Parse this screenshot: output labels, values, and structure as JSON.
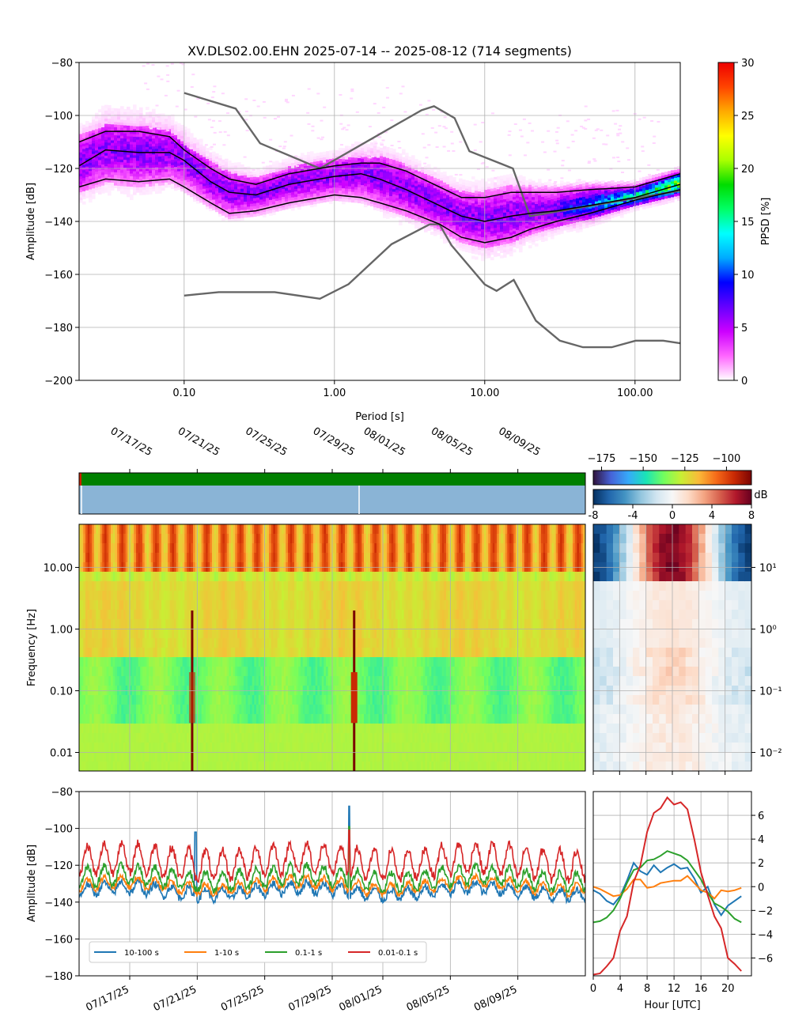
{
  "chart_data": [
    {
      "type": "heatmap",
      "panel": "ppsd",
      "title": "XV.DLS02.00.EHN   2025-07-14 -- 2025-08-12  (714 segments)",
      "xlabel": "Period [s]",
      "ylabel": "Amplitude [dB]",
      "xscale": "log",
      "xlim": [
        0.02,
        200
      ],
      "ylim": [
        -200,
        -80
      ],
      "xticks": [
        {
          "v": 0.1,
          "label": "0.10"
        },
        {
          "v": 1,
          "label": "1.00"
        },
        {
          "v": 10,
          "label": "10.00"
        },
        {
          "v": 100,
          "label": "100.00"
        }
      ],
      "yticks": [
        {
          "v": -80,
          "label": "−80"
        },
        {
          "v": -100,
          "label": "−100"
        },
        {
          "v": -120,
          "label": "−120"
        },
        {
          "v": -140,
          "label": "−140"
        },
        {
          "v": -160,
          "label": "−160"
        },
        {
          "v": -180,
          "label": "−180"
        },
        {
          "v": -200,
          "label": "−200"
        }
      ],
      "grid": true,
      "colorbar": {
        "label": "PPSD [%]",
        "range": [
          0,
          30
        ],
        "ticks": [
          {
            "v": 0,
            "label": "0"
          },
          {
            "v": 5,
            "label": "5"
          },
          {
            "v": 10,
            "label": "10"
          },
          {
            "v": 15,
            "label": "15"
          },
          {
            "v": 20,
            "label": "20"
          },
          {
            "v": 25,
            "label": "25"
          },
          {
            "v": 30,
            "label": "30"
          }
        ],
        "colors": [
          "#ffffff",
          "#ff66ff",
          "#cc00ff",
          "#6600ff",
          "#0000ff",
          "#00aaff",
          "#00ffff",
          "#00ff66",
          "#00dd00",
          "#aaff00",
          "#ffff00",
          "#ffaa00",
          "#ff4400",
          "#ee0000"
        ]
      },
      "percentile_curves": [
        {
          "x": [
            0.02,
            0.03,
            0.05,
            0.08,
            0.1,
            0.15,
            0.2,
            0.3,
            0.5,
            1,
            1.5,
            2,
            3,
            5,
            7,
            10,
            15,
            20,
            30,
            50,
            100,
            200
          ],
          "y": [
            -110,
            -106,
            -106,
            -108,
            -113,
            -120,
            -124,
            -126,
            -122,
            -119,
            -118,
            -118,
            -121,
            -127,
            -131,
            -131,
            -129,
            -129,
            -129,
            -128,
            -127,
            -122
          ]
        },
        {
          "x": [
            0.02,
            0.03,
            0.05,
            0.08,
            0.1,
            0.15,
            0.2,
            0.3,
            0.5,
            1,
            1.5,
            2,
            3,
            5,
            7,
            10,
            15,
            20,
            30,
            50,
            100,
            200
          ],
          "y": [
            -119,
            -113,
            -114,
            -114,
            -117,
            -125,
            -129,
            -130,
            -126,
            -123,
            -122,
            -124,
            -128,
            -134,
            -138,
            -140,
            -138,
            -137,
            -136,
            -134,
            -131,
            -126
          ]
        },
        {
          "x": [
            0.02,
            0.03,
            0.05,
            0.08,
            0.1,
            0.15,
            0.2,
            0.3,
            0.5,
            1,
            1.5,
            2,
            3,
            5,
            7,
            10,
            15,
            20,
            30,
            50,
            100,
            200
          ],
          "y": [
            -127,
            -124,
            -125,
            -124,
            -127,
            -133,
            -137,
            -136,
            -133,
            -130,
            -131,
            -133,
            -136,
            -141,
            -146,
            -148,
            -146,
            -143,
            -140,
            -137,
            -132,
            -128
          ]
        }
      ],
      "noise_model_high": {
        "x": [
          0.1,
          0.22,
          0.32,
          0.8,
          3.8,
          4.6,
          6.3,
          7.9,
          15.4,
          20,
          354.8
        ],
        "y": [
          -91.5,
          -97.4,
          -110.5,
          -120,
          -98,
          -96.5,
          -101,
          -113.5,
          -120,
          -138,
          -126
        ]
      },
      "noise_model_low": {
        "x": [
          0.1,
          0.17,
          0.4,
          0.8,
          1.24,
          2.4,
          4.3,
          5,
          6,
          10,
          12,
          15.6,
          21.9,
          31.6,
          45,
          70,
          101,
          154,
          200
        ],
        "y": [
          -168,
          -166.7,
          -166.7,
          -169.2,
          -163.7,
          -148.6,
          -141.1,
          -141.1,
          -149,
          -163.8,
          -166.2,
          -162.1,
          -177.5,
          -185,
          -187.5,
          -187.5,
          -185,
          -185,
          -186
        ]
      }
    },
    {
      "type": "heatmap",
      "panel": "spectrogram",
      "ylabel": "Frequency [Hz]",
      "yscale": "log",
      "ylim": [
        0.005,
        50
      ],
      "yticks": [
        {
          "v": 0.01,
          "label": "0.01"
        },
        {
          "v": 0.1,
          "label": "0.10"
        },
        {
          "v": 1,
          "label": "1.00"
        },
        {
          "v": 10,
          "label": "10.00"
        }
      ],
      "xlim": [
        "2025-07-14",
        "2025-08-13"
      ],
      "date_ticks": [
        {
          "d": "2025-07-17",
          "label": "07/17/25"
        },
        {
          "d": "2025-07-21",
          "label": "07/21/25"
        },
        {
          "d": "2025-07-25",
          "label": "07/25/25"
        },
        {
          "d": "2025-07-29",
          "label": "07/29/25"
        },
        {
          "d": "2025-08-01",
          "label": "08/01/25"
        },
        {
          "d": "2025-08-05",
          "label": "08/05/25"
        },
        {
          "d": "2025-08-09",
          "label": "08/09/25"
        }
      ],
      "colorbar": {
        "range": [
          -180,
          -85
        ],
        "ticks": [
          {
            "v": -175,
            "label": "−175"
          },
          {
            "v": -150,
            "label": "−150"
          },
          {
            "v": -125,
            "label": "−125"
          },
          {
            "v": -100,
            "label": "−100"
          }
        ]
      },
      "events": [
        "2025-07-20",
        "2025-07-20",
        "2025-07-30",
        "2025-07-30"
      ]
    },
    {
      "type": "heatmap",
      "panel": "diurnal-anomaly",
      "unit": "dB",
      "xlim": [
        0,
        24
      ],
      "yscale": "log",
      "ylim": [
        0.005,
        50
      ],
      "yticks": [
        {
          "v": 0.01,
          "label": "10⁻²"
        },
        {
          "v": 0.1,
          "label": "10⁻¹"
        },
        {
          "v": 1,
          "label": "10⁰"
        },
        {
          "v": 10,
          "label": "10¹"
        }
      ],
      "colorbar": {
        "range": [
          -8,
          8
        ],
        "ticks": [
          {
            "v": -8,
            "label": "-8"
          },
          {
            "v": -4,
            "label": "-4"
          },
          {
            "v": 0,
            "label": "0"
          },
          {
            "v": 4,
            "label": "4"
          },
          {
            "v": 8,
            "label": "8"
          }
        ]
      }
    },
    {
      "type": "line",
      "panel": "band-timeseries",
      "ylabel": "Amplitude [dB]",
      "ylim": [
        -180,
        -80
      ],
      "yticks": [
        {
          "v": -80,
          "label": "−80"
        },
        {
          "v": -100,
          "label": "−100"
        },
        {
          "v": -120,
          "label": "−120"
        },
        {
          "v": -140,
          "label": "−140"
        },
        {
          "v": -160,
          "label": "−160"
        },
        {
          "v": -180,
          "label": "−180"
        }
      ],
      "grid": true,
      "legend": "lower-left",
      "series": [
        {
          "name": "10-100 s",
          "color": "#1f77b4",
          "mean": -134,
          "amp": 3,
          "noise": 2,
          "spike_day": 16,
          "spike": -88
        },
        {
          "name": "1-10 s",
          "color": "#ff7f0e",
          "mean": -131,
          "amp": 3,
          "noise": 1.5,
          "spike_day": 16,
          "spike": -100
        },
        {
          "name": "0.1-1 s",
          "color": "#2ca02c",
          "mean": -127,
          "amp": 5,
          "noise": 2,
          "spike_day": 16,
          "spike": -99
        },
        {
          "name": "0.01-0.1 s",
          "color": "#d62728",
          "mean": -118,
          "amp": 8,
          "noise": 2.5,
          "spike_day": 16,
          "spike": -101
        }
      ]
    },
    {
      "type": "line",
      "panel": "diurnal-profile",
      "xlabel": "Hour [UTC]",
      "xlim": [
        0,
        23.5
      ],
      "ylim": [
        -7.5,
        8
      ],
      "xticks": [
        0,
        4,
        8,
        12,
        16,
        20
      ],
      "yticks": [
        {
          "v": -6,
          "label": "−6"
        },
        {
          "v": -4,
          "label": "−4"
        },
        {
          "v": -2,
          "label": "−2"
        },
        {
          "v": 0,
          "label": "0"
        },
        {
          "v": 2,
          "label": "2"
        },
        {
          "v": 4,
          "label": "4"
        },
        {
          "v": 6,
          "label": "6"
        }
      ],
      "grid": true,
      "x": [
        0,
        1,
        2,
        3,
        4,
        5,
        6,
        7,
        8,
        9,
        10,
        11,
        12,
        13,
        14,
        15,
        16,
        17,
        18,
        19,
        20,
        21,
        22
      ],
      "series": [
        {
          "name": "10-100 s",
          "color": "#1f77b4",
          "values": [
            -0.3,
            -0.6,
            -1.2,
            -1.5,
            -0.8,
            0.5,
            2.0,
            1.3,
            1.0,
            1.8,
            1.2,
            1.6,
            1.9,
            1.5,
            1.6,
            0.7,
            -0.5,
            0.0,
            -1.5,
            -2.4,
            -1.6,
            -1.2,
            -0.8
          ]
        },
        {
          "name": "1-10 s",
          "color": "#ff7f0e",
          "values": [
            0.0,
            -0.2,
            -0.5,
            -0.8,
            -0.7,
            -0.2,
            0.6,
            0.6,
            -0.1,
            0.0,
            0.3,
            0.4,
            0.5,
            0.5,
            0.9,
            0.3,
            -0.3,
            -0.5,
            -1.0,
            -0.3,
            -0.4,
            -0.3,
            -0.1
          ]
        },
        {
          "name": "0.1-1 s",
          "color": "#2ca02c",
          "values": [
            -3.0,
            -2.9,
            -2.6,
            -2.0,
            -1.0,
            0.3,
            1.4,
            1.6,
            2.2,
            2.3,
            2.6,
            3.0,
            2.8,
            2.6,
            2.2,
            1.4,
            0.6,
            -0.5,
            -1.4,
            -1.7,
            -2.1,
            -2.7,
            -3.0
          ]
        },
        {
          "name": "0.01-0.1 s",
          "color": "#d62728",
          "values": [
            -7.4,
            -7.3,
            -6.7,
            -6.0,
            -3.7,
            -2.5,
            0.4,
            1.8,
            4.6,
            6.2,
            6.6,
            7.5,
            6.9,
            7.1,
            6.5,
            4.0,
            1.2,
            -0.7,
            -2.5,
            -3.5,
            -6.0,
            -6.5,
            -7.1
          ]
        }
      ]
    }
  ],
  "dB_label": "dB"
}
